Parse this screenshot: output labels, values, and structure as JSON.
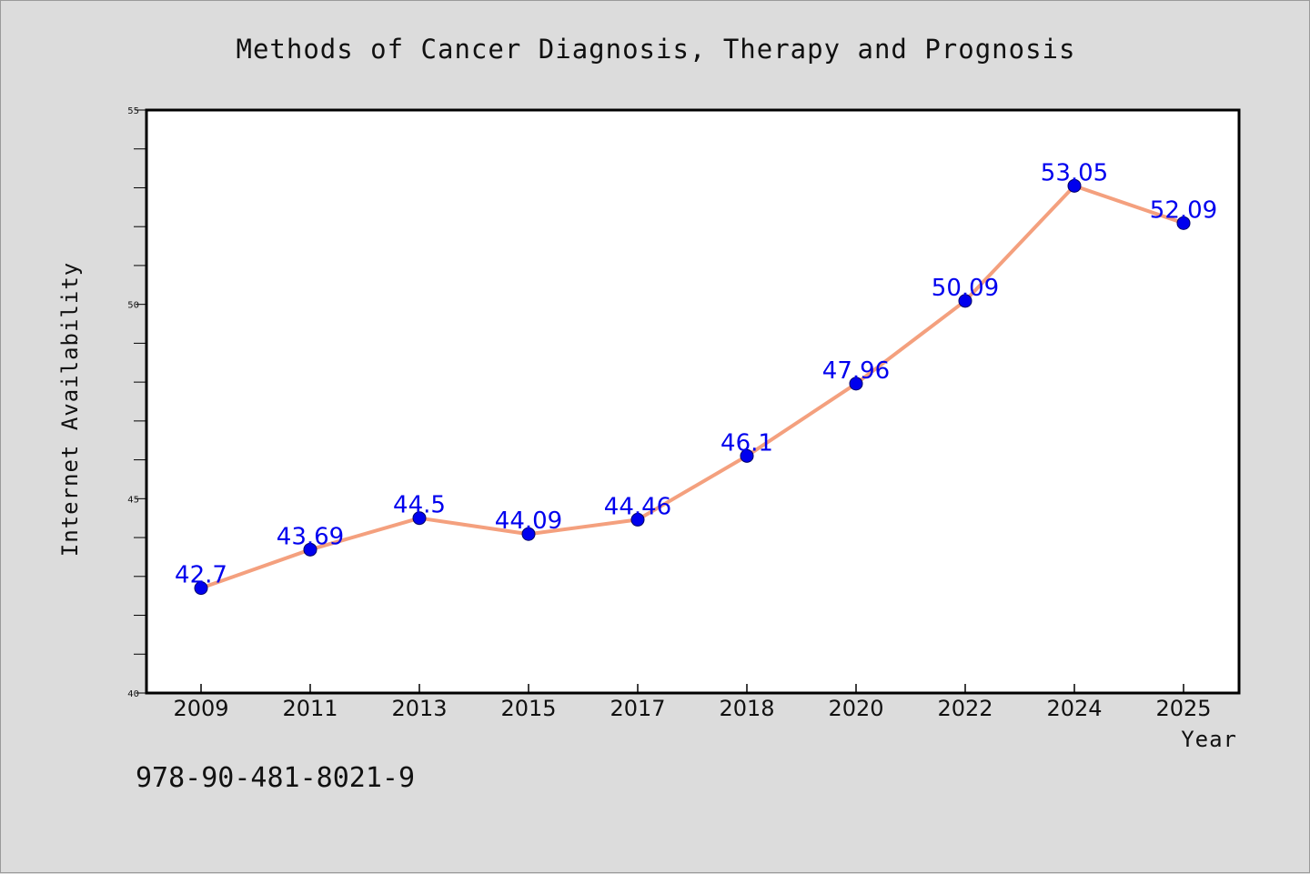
{
  "chart_data": {
    "type": "line",
    "title": "Methods of Cancer Diagnosis, Therapy and Prognosis",
    "xlabel": "Year",
    "ylabel": "Internet Availability",
    "categories": [
      "2009",
      "2011",
      "2013",
      "2015",
      "2017",
      "2018",
      "2020",
      "2022",
      "2024",
      "2025"
    ],
    "series": [
      {
        "values": [
          42.7,
          43.69,
          44.5,
          44.09,
          44.46,
          46.1,
          47.96,
          50.09,
          53.05,
          52.09
        ],
        "labels": [
          "42.7",
          "43.69",
          "44.5",
          "44.09",
          "44.46",
          "46.1",
          "47.96",
          "50.09",
          "53.05",
          "52.09"
        ]
      }
    ],
    "ylim": [
      40,
      55
    ],
    "yticks": [
      40,
      45,
      50,
      55
    ],
    "ytick_labels": [
      "40",
      "45",
      "50",
      "55"
    ],
    "yminor_step": 1,
    "grid": false,
    "legend": "none",
    "colors": {
      "line": "#f4a07e",
      "marker": "#0000ee",
      "marker_edge": "#000066",
      "data_label": "#0000ee",
      "plot_background": "#ffffff",
      "page_background": "#dcdcdc"
    }
  },
  "footer": {
    "isbn": "978-90-481-8021-9"
  }
}
